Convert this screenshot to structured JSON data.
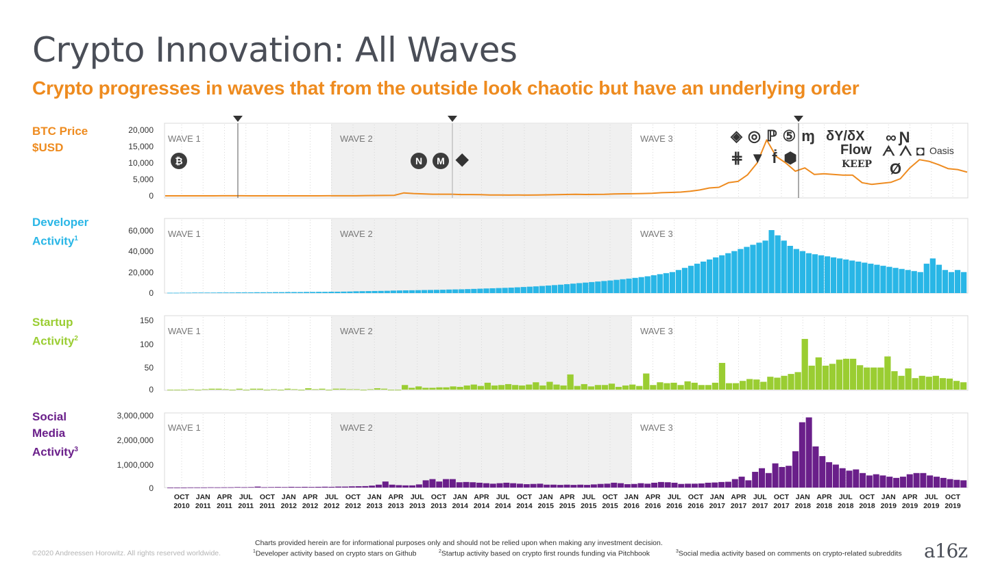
{
  "title": "Crypto Innovation: All Waves",
  "subtitle": "Crypto progresses in waves that from the outside look chaotic but have an underlying order",
  "rows": [
    {
      "label1": "BTC Price",
      "label2": "$USD",
      "sup": "",
      "color": "#ee8b1f"
    },
    {
      "label1": "Developer",
      "label2": "Activity",
      "sup": "1",
      "color": "#29b6e6"
    },
    {
      "label1": "Startup",
      "label2": "Activity",
      "sup": "2",
      "color": "#9acd32"
    },
    {
      "label1": "Social",
      "label2": "Media",
      "label3": "Activity",
      "sup": "3",
      "color": "#6a1f8a"
    }
  ],
  "waves": {
    "w1": "WAVE 1",
    "w2": "WAVE 2",
    "w3": "WAVE 3"
  },
  "x_ticks": [
    [
      "OCT",
      "2010"
    ],
    [
      "JAN",
      "2011"
    ],
    [
      "APR",
      "2011"
    ],
    [
      "JUL",
      "2011"
    ],
    [
      "OCT",
      "2011"
    ],
    [
      "JAN",
      "2012"
    ],
    [
      "APR",
      "2012"
    ],
    [
      "JUL",
      "2012"
    ],
    [
      "OCT",
      "2012"
    ],
    [
      "JAN",
      "2013"
    ],
    [
      "APR",
      "2013"
    ],
    [
      "JUL",
      "2013"
    ],
    [
      "OCT",
      "2013"
    ],
    [
      "JAN",
      "2014"
    ],
    [
      "APR",
      "2014"
    ],
    [
      "JUL",
      "2014"
    ],
    [
      "OCT",
      "2014"
    ],
    [
      "JAN",
      "2015"
    ],
    [
      "APR",
      "2015"
    ],
    [
      "JUL",
      "2015"
    ],
    [
      "OCT",
      "2015"
    ],
    [
      "JAN",
      "2016"
    ],
    [
      "APR",
      "2016"
    ],
    [
      "JUL",
      "2016"
    ],
    [
      "OCT",
      "2016"
    ],
    [
      "JAN",
      "2017"
    ],
    [
      "APR",
      "2017"
    ],
    [
      "JUL",
      "2017"
    ],
    [
      "OCT",
      "2017"
    ],
    [
      "JAN",
      "2018"
    ],
    [
      "APR",
      "2018"
    ],
    [
      "JUL",
      "2018"
    ],
    [
      "OCT",
      "2018"
    ],
    [
      "JAN",
      "2019"
    ],
    [
      "APR",
      "2019"
    ],
    [
      "JUL",
      "2019"
    ],
    [
      "OCT",
      "2019"
    ]
  ],
  "chart_data": [
    {
      "type": "line",
      "name": "btc",
      "yticks": [
        "20,000",
        "15,000",
        "10,000",
        "5,000",
        "0"
      ],
      "ylim": [
        0,
        20000
      ],
      "x_start": "2010-09",
      "values": [
        0,
        0,
        0,
        0,
        0,
        1,
        17,
        14,
        13,
        5,
        3,
        3,
        5,
        5,
        5,
        6,
        10,
        12,
        13,
        14,
        20,
        90,
        110,
        130,
        170,
        900,
        700,
        600,
        500,
        500,
        500,
        400,
        400,
        350,
        280,
        250,
        230,
        240,
        230,
        280,
        320,
        380,
        420,
        450,
        420,
        430,
        450,
        580,
        620,
        650,
        700,
        780,
        950,
        1050,
        1150,
        1400,
        1800,
        2400,
        2600,
        4000,
        4400,
        6400,
        10000,
        17000,
        12000,
        10000,
        7500,
        8500,
        6500,
        6700,
        6500,
        6300,
        6300,
        4000,
        3500,
        3800,
        4100,
        5200,
        8500,
        11000,
        10500,
        9500,
        8300,
        8000,
        7200
      ],
      "markers": [
        "2011-06",
        "2013-11",
        "2017-12"
      ]
    },
    {
      "type": "bar",
      "name": "developer",
      "yticks": [
        "60,000",
        "40,000",
        "20,000",
        "0"
      ],
      "ylim": [
        0,
        60000
      ],
      "values": [
        300,
        300,
        400,
        400,
        500,
        500,
        500,
        500,
        600,
        600,
        600,
        700,
        700,
        700,
        800,
        800,
        800,
        900,
        900,
        1000,
        1000,
        1000,
        1100,
        1100,
        1200,
        1200,
        1300,
        1300,
        1400,
        1500,
        1700,
        1800,
        1900,
        2000,
        2100,
        2200,
        2400,
        2500,
        2600,
        2700,
        2800,
        2900,
        3000,
        3100,
        3200,
        3400,
        3500,
        3600,
        3800,
        4000,
        4200,
        4400,
        4600,
        4800,
        5000,
        5200,
        5500,
        5800,
        6100,
        6400,
        6800,
        7200,
        7600,
        8000,
        8500,
        9000,
        9500,
        10000,
        10500,
        11000,
        11500,
        12000,
        12600,
        13200,
        13800,
        14500,
        15200,
        16000,
        17000,
        18000,
        19000,
        20000,
        22000,
        24000,
        26000,
        28000,
        30000,
        32000,
        34000,
        36000,
        38000,
        40000,
        42000,
        44000,
        46000,
        48000,
        50000,
        60000,
        55000,
        50000,
        45000,
        42000,
        40000,
        38000,
        37000,
        36000,
        35000,
        34000,
        33000,
        32000,
        31000,
        30000,
        29000,
        28000,
        27000,
        26000,
        25000,
        24000,
        23000,
        22000,
        21000,
        20000,
        28000,
        33000,
        27000,
        22000,
        20000,
        22000,
        20000
      ],
      "_note_removed": true
    },
    {
      "type": "bar",
      "name": "startup",
      "yticks": [
        "150",
        "100",
        "50",
        "0"
      ],
      "ylim": [
        0,
        150
      ],
      "values": [
        0,
        0,
        0,
        1,
        0,
        1,
        2,
        2,
        1,
        0,
        2,
        0,
        2,
        2,
        0,
        1,
        0,
        2,
        1,
        0,
        3,
        1,
        2,
        0,
        2,
        2,
        1,
        1,
        0,
        1,
        3,
        2,
        0,
        0,
        10,
        4,
        7,
        4,
        4,
        5,
        5,
        7,
        6,
        9,
        11,
        8,
        15,
        9,
        10,
        12,
        10,
        9,
        11,
        16,
        9,
        17,
        11,
        9,
        33,
        8,
        12,
        7,
        10,
        10,
        13,
        6,
        9,
        11,
        8,
        35,
        10,
        16,
        14,
        15,
        10,
        18,
        15,
        10,
        10,
        15,
        58,
        14,
        14,
        19,
        23,
        22,
        17,
        28,
        26,
        30,
        34,
        38,
        110,
        52,
        70,
        52,
        56,
        65,
        67,
        67,
        53,
        48,
        48,
        48,
        72,
        40,
        30,
        46,
        25,
        30,
        28,
        30,
        25,
        24,
        19,
        16
      ],
      "_note_removed": true
    },
    {
      "type": "bar",
      "name": "social",
      "yticks": [
        "3,000,000",
        "2,000,000",
        "1,000,000",
        "0"
      ],
      "ylim": [
        0,
        3000000
      ],
      "values": [
        0,
        0,
        0,
        5000,
        5000,
        5000,
        10000,
        8000,
        10000,
        12000,
        20000,
        15000,
        20000,
        40000,
        15000,
        20000,
        25000,
        20000,
        30000,
        25000,
        30000,
        25000,
        30000,
        35000,
        30000,
        40000,
        40000,
        50000,
        55000,
        60000,
        80000,
        120000,
        250000,
        120000,
        100000,
        90000,
        90000,
        130000,
        300000,
        350000,
        250000,
        350000,
        350000,
        220000,
        230000,
        220000,
        200000,
        180000,
        160000,
        180000,
        200000,
        180000,
        160000,
        140000,
        150000,
        160000,
        120000,
        120000,
        110000,
        120000,
        110000,
        120000,
        110000,
        130000,
        150000,
        160000,
        200000,
        180000,
        140000,
        150000,
        180000,
        160000,
        200000,
        230000,
        220000,
        200000,
        150000,
        160000,
        160000,
        170000,
        200000,
        210000,
        230000,
        240000,
        350000,
        450000,
        300000,
        650000,
        800000,
        600000,
        1000000,
        850000,
        900000,
        1500000,
        2700000,
        2900000,
        1700000,
        1300000,
        1050000,
        950000,
        800000,
        700000,
        750000,
        600000,
        500000,
        550000,
        500000,
        450000,
        400000,
        450000,
        550000,
        600000,
        600000,
        500000,
        450000,
        400000,
        350000,
        320000,
        300000
      ],
      "_note_removed": true
    }
  ],
  "footer": {
    "copyright": "©2020 Andreessen Horowitz. All rights reserved worldwide.",
    "disclaimer": "Charts provided herein are for informational purposes only and should not be relied upon when making any investment decision.",
    "fn1": "Developer activity based on crypto stars on Github",
    "fn2": "Startup activity based on crypto first rounds funding via Pitchbook",
    "fn3": "Social media activity based on comments on crypto-related subreddits",
    "fn1_sup": "1",
    "fn2_sup": "2",
    "fn3_sup": "3",
    "logo": "a16z"
  },
  "project_logos": {
    "wave1": [
      "B"
    ],
    "wave2": [
      "N",
      "M",
      "ETH"
    ],
    "wave3_text": [
      "Flow",
      "KEEP",
      "Oasis",
      "δY/δX"
    ]
  }
}
